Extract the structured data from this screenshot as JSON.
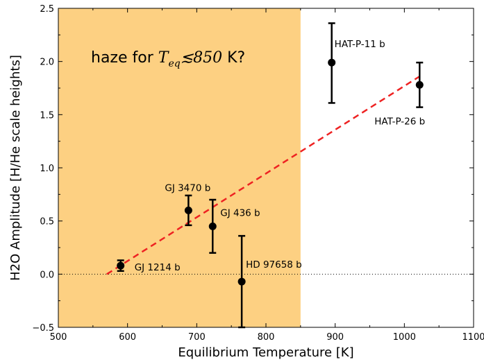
{
  "chart_data": {
    "type": "scatter",
    "xlabel": "Equilibrium Temperature [K]",
    "ylabel": "H2O Amplitude [H/He scale heights]",
    "xlim": [
      500,
      1100
    ],
    "ylim": [
      -0.5,
      2.5
    ],
    "x_ticks": [
      500,
      600,
      700,
      800,
      900,
      1000,
      1100
    ],
    "x_tick_labels": [
      "500",
      "600",
      "700",
      "800",
      "900",
      "1000",
      "1100"
    ],
    "y_ticks": [
      -0.5,
      0.0,
      0.5,
      1.0,
      1.5,
      2.0,
      2.5
    ],
    "y_tick_labels": [
      "−0.5",
      "0.0",
      "0.5",
      "1.0",
      "1.5",
      "2.0",
      "2.5"
    ],
    "grid": false,
    "shaded_region": {
      "x_from": 500,
      "x_to": 850,
      "color": "#fdd082"
    },
    "annotation": {
      "prefix": "haze for ",
      "math_var": "T",
      "math_sub": "eq",
      "math_rel": "≲850",
      "suffix": " K?"
    },
    "points": [
      {
        "name": "GJ 1214 b",
        "x": 590,
        "y": 0.08,
        "err_low": 0.05,
        "err_high": 0.05
      },
      {
        "name": "GJ 3470 b",
        "x": 688,
        "y": 0.6,
        "err_low": 0.14,
        "err_high": 0.14
      },
      {
        "name": "GJ 436 b",
        "x": 723,
        "y": 0.45,
        "err_low": 0.25,
        "err_high": 0.25
      },
      {
        "name": "HD 97658 b",
        "x": 765,
        "y": -0.07,
        "err_low": 0.43,
        "err_high": 0.43
      },
      {
        "name": "HAT-P-11 b",
        "x": 895,
        "y": 1.99,
        "err_low": 0.38,
        "err_high": 0.37
      },
      {
        "name": "HAT-P-26 b",
        "x": 1022,
        "y": 1.78,
        "err_low": 0.21,
        "err_high": 0.21
      }
    ],
    "fit_line": {
      "x": [
        570,
        1022
      ],
      "y": [
        0.0,
        1.86
      ],
      "color": "#ee2222",
      "style": "dashed"
    },
    "reference_line": {
      "y": 0.0,
      "style": "dotted",
      "color": "#000000"
    },
    "marker_color": "#000000"
  }
}
